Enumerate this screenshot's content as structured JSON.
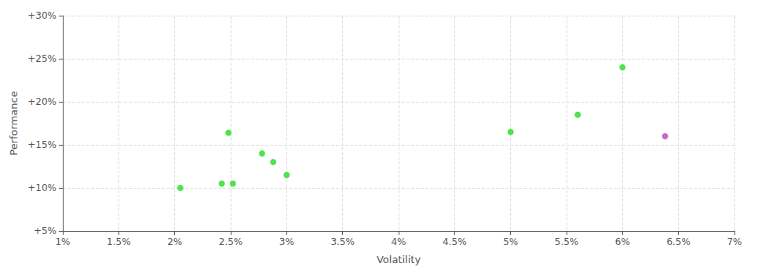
{
  "chart_data": {
    "type": "scatter",
    "xlabel": "Volatility",
    "ylabel": "Performance",
    "series": [
      {
        "color": "#22dd22",
        "x": [
          2.05,
          2.42,
          2.52,
          2.48,
          2.78,
          2.88,
          3.0,
          5.0,
          5.6,
          6.0
        ],
        "values": [
          10.0,
          10.5,
          10.5,
          16.4,
          14.0,
          13.0,
          11.5,
          16.5,
          18.5,
          24.0
        ]
      },
      {
        "color": "#bb44bb",
        "x": [
          6.38
        ],
        "values": [
          16.0
        ]
      }
    ],
    "xlim": [
      1.0,
      7.0
    ],
    "ylim": [
      5.0,
      30.0
    ],
    "xticks": [
      {
        "value": 1.0,
        "label": "1%"
      },
      {
        "value": 1.5,
        "label": "1.5%"
      },
      {
        "value": 2.0,
        "label": "2%"
      },
      {
        "value": 2.5,
        "label": "2.5%"
      },
      {
        "value": 3.0,
        "label": "3%"
      },
      {
        "value": 3.5,
        "label": "3.5%"
      },
      {
        "value": 4.0,
        "label": "4%"
      },
      {
        "value": 4.5,
        "label": "4.5%"
      },
      {
        "value": 5.0,
        "label": "5%"
      },
      {
        "value": 5.5,
        "label": "5.5%"
      },
      {
        "value": 6.0,
        "label": "6%"
      },
      {
        "value": 6.5,
        "label": "6.5%"
      },
      {
        "value": 7.0,
        "label": "7%"
      }
    ],
    "yticks": [
      {
        "value": 5.0,
        "label": "+5%"
      },
      {
        "value": 10.0,
        "label": "+10%"
      },
      {
        "value": 15.0,
        "label": "+15%"
      },
      {
        "value": 20.0,
        "label": "+20%"
      },
      {
        "value": 25.0,
        "label": "+25%"
      },
      {
        "value": 30.0,
        "label": "+30%"
      }
    ],
    "grid": true
  }
}
